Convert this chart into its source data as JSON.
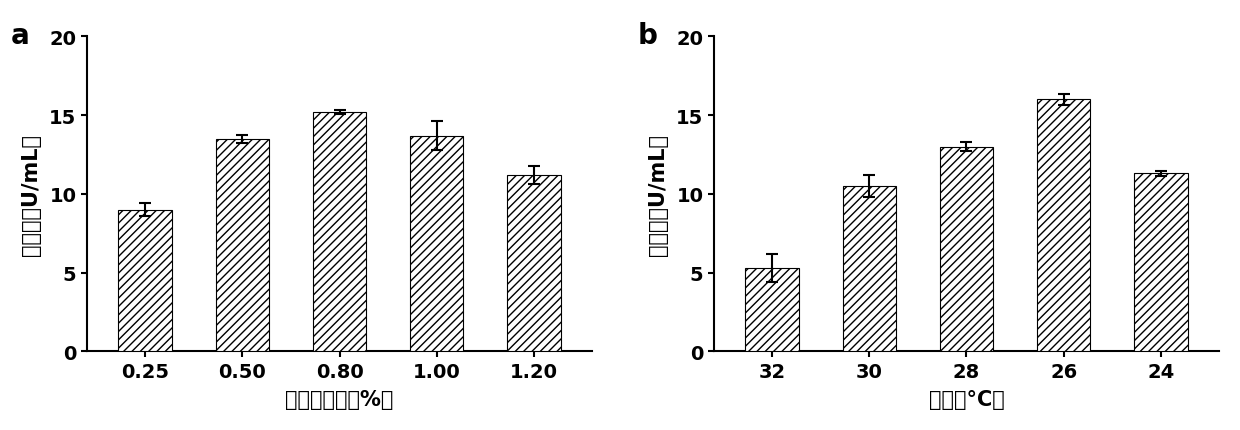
{
  "panel_a": {
    "categories": [
      "0.25",
      "0.50",
      "0.80",
      "1.00",
      "1.20"
    ],
    "values": [
      9.0,
      13.5,
      15.2,
      13.7,
      11.2
    ],
    "errors": [
      0.4,
      0.25,
      0.15,
      0.9,
      0.6
    ],
    "xlabel": "甲醇添加量（%）",
    "ylabel": "酶活力（U/mL）",
    "ylim": [
      0,
      20
    ],
    "yticks": [
      0,
      5,
      10,
      15,
      20
    ],
    "label": "a"
  },
  "panel_b": {
    "categories": [
      "32",
      "30",
      "28",
      "26",
      "24"
    ],
    "values": [
      5.3,
      10.5,
      13.0,
      16.0,
      11.3
    ],
    "errors": [
      0.9,
      0.7,
      0.3,
      0.35,
      0.15
    ],
    "xlabel": "温度（°C）",
    "ylabel": "酶活力（U/mL）",
    "ylim": [
      0,
      20
    ],
    "yticks": [
      0,
      5,
      10,
      15,
      20
    ],
    "label": "b"
  },
  "hatch_pattern": "////",
  "bar_color": "white",
  "bar_edgecolor": "black",
  "bar_width": 0.55,
  "figsize": [
    12.4,
    4.31
  ],
  "dpi": 100,
  "background_color": "white",
  "tick_fontsize": 14,
  "axis_label_fontsize": 15,
  "panel_label_fontsize": 20,
  "capsize": 4,
  "elinewidth": 1.5,
  "ecolor": "black"
}
